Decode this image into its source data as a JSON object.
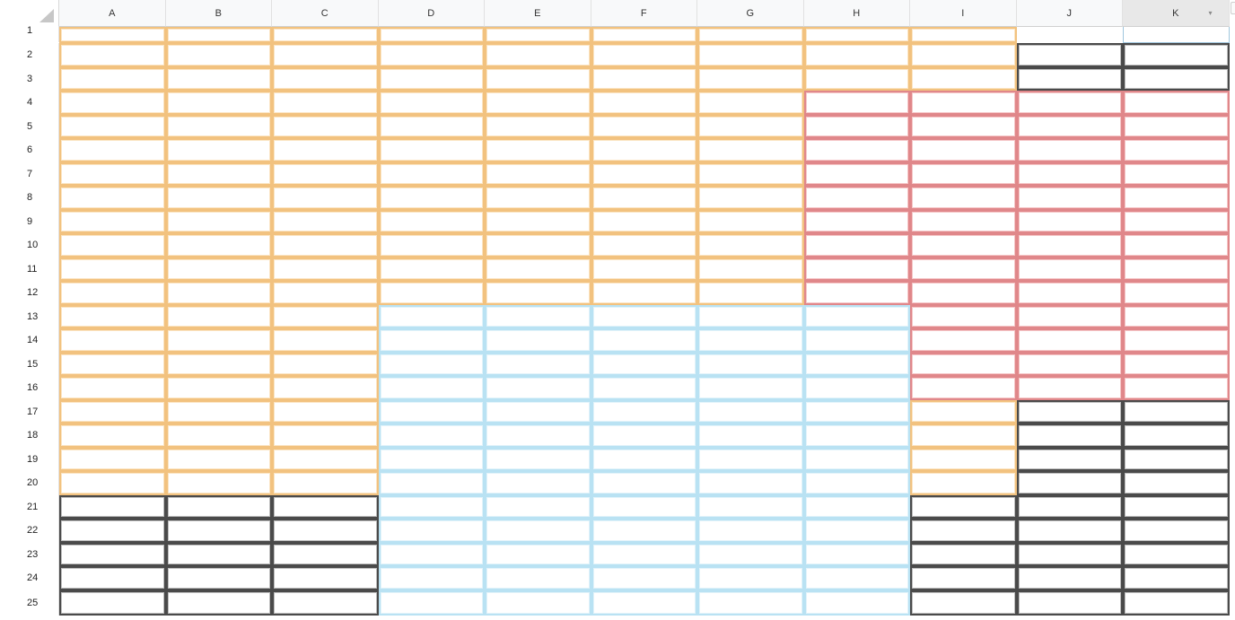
{
  "spreadsheet": {
    "columns": [
      "A",
      "B",
      "C",
      "D",
      "E",
      "F",
      "G",
      "H",
      "I",
      "J",
      "K"
    ],
    "rows": [
      "1",
      "2",
      "3",
      "4",
      "5",
      "6",
      "7",
      "8",
      "9",
      "10",
      "11",
      "12",
      "13",
      "14",
      "15",
      "16",
      "17",
      "18",
      "19",
      "20",
      "21",
      "22",
      "23",
      "24",
      "25"
    ],
    "selected_column": "K",
    "column_dropdown_icon": "chevron-down-icon",
    "border_colors": {
      "orange": "#f2c27f",
      "red": "#e0878a",
      "blue": "#b9e2f3",
      "black": "#4a4a4a"
    },
    "cell_styles": [
      "OOOOOOOOO.K",
      "OOOOOOOOOBB",
      "OOOOOOOOOBB",
      "OOOOOOORRRR",
      "OOOOOOORRRR",
      "OOOOOOORRRR",
      "OOOOOOORRRR",
      "OOOOOOORRRR",
      "OOOOOOORRRR",
      "OOOOOOORRRR",
      "OOOOOOORRRR",
      "OOOOOOORRRR",
      "OOOLLLLLRRR",
      "OOOLLLLLRRR",
      "OOOLLLLLRRR",
      "OOOLLLLLRRR",
      "OOOLLLLLOBB",
      "OOOLLLLLOBB",
      "OOOLLLLLOBB",
      "OOOLLLLLOBB",
      "BBBLLLLLBBB",
      "BBBLLLLLBBB",
      "BBBLLLLLBBB",
      "BBBLLLLLBBB",
      "BBBLLLLLBBB"
    ]
  }
}
